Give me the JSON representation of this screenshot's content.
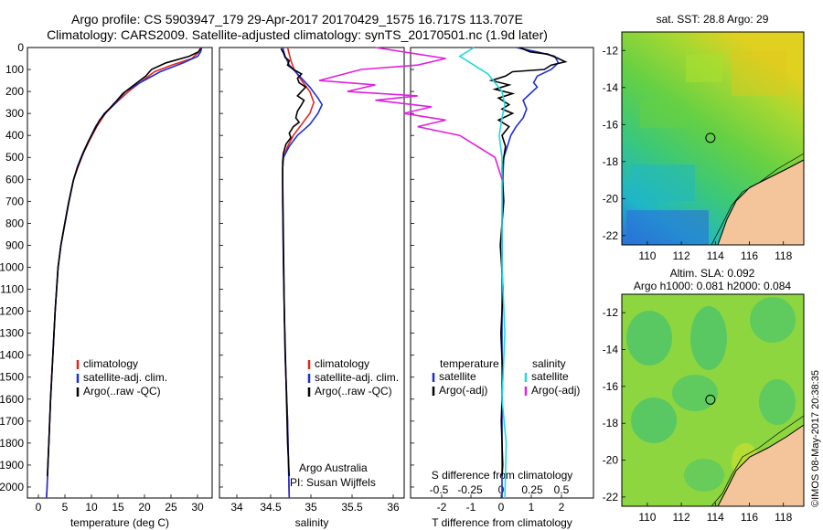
{
  "titles": {
    "line1": "Argo profile: CS 5903947_179 29-Apr-2017 20170429_1575 16.717S 113.707E",
    "line2": "Climatology: CARS2009. Satellite-adjusted climatology: synTS_20170501.nc (1.9d later)"
  },
  "colors": {
    "climatology": "#e8251d",
    "satellite": "#1c2fd6",
    "argo": "#000000",
    "sal_sat": "#22d8e0",
    "sal_argo": "#e020e0",
    "land": "#f4c49a"
  },
  "chart_data": [
    {
      "type": "line",
      "id": "temperature",
      "xlabel": "temperature (deg C)",
      "xlim": [
        -1,
        31
      ],
      "ylim": [
        2050,
        0
      ],
      "xticks": [
        "0",
        "5",
        "10",
        "15",
        "20",
        "25",
        "30"
      ],
      "yticks": [
        "0",
        "100",
        "200",
        "300",
        "400",
        "500",
        "600",
        "700",
        "800",
        "900",
        "1000",
        "1100",
        "1200",
        "1300",
        "1400",
        "1500",
        "1600",
        "1700",
        "1800",
        "1900",
        "2000"
      ],
      "legend": [
        "climatology",
        "satellite-adj. clim.",
        "Argo(..raw -QC)"
      ],
      "series": [
        {
          "name": "climatology",
          "color": "#e8251d",
          "points": [
            [
              29.0,
              0
            ],
            [
              28.7,
              20
            ],
            [
              27.5,
              50
            ],
            [
              24,
              80
            ],
            [
              21,
              110
            ],
            [
              18.5,
              160
            ],
            [
              16.5,
              200
            ],
            [
              14,
              260
            ],
            [
              12.5,
              300
            ],
            [
              11,
              360
            ],
            [
              9.8,
              420
            ],
            [
              8.7,
              480
            ],
            [
              7.8,
              540
            ],
            [
              7.0,
              600
            ],
            [
              6.2,
              700
            ],
            [
              5.5,
              800
            ],
            [
              4.8,
              900
            ],
            [
              4.3,
              1000
            ],
            [
              3.8,
              1200
            ],
            [
              3.4,
              1400
            ],
            [
              3.0,
              1600
            ],
            [
              2.7,
              1800
            ],
            [
              2.4,
              2000
            ],
            [
              2.3,
              2050
            ]
          ]
        },
        {
          "name": "satellite-adj. clim.",
          "color": "#1c2fd6",
          "points": [
            [
              29.2,
              0
            ],
            [
              29.0,
              20
            ],
            [
              28.5,
              40
            ],
            [
              26,
              70
            ],
            [
              22,
              110
            ],
            [
              18.5,
              160
            ],
            [
              16,
              200
            ],
            [
              14,
              260
            ],
            [
              12.3,
              300
            ],
            [
              10.8,
              360
            ],
            [
              9.7,
              420
            ],
            [
              8.6,
              480
            ],
            [
              7.7,
              540
            ],
            [
              7.0,
              600
            ],
            [
              6.2,
              700
            ],
            [
              5.5,
              800
            ],
            [
              4.8,
              900
            ],
            [
              4.3,
              1000
            ],
            [
              3.8,
              1200
            ],
            [
              3.4,
              1400
            ],
            [
              3.0,
              1600
            ],
            [
              2.7,
              1800
            ],
            [
              2.4,
              2000
            ],
            [
              2.3,
              2050
            ]
          ]
        },
        {
          "name": "Argo(..raw -QC)",
          "color": "#000000",
          "points": [
            [
              29.0,
              5
            ],
            [
              28.6,
              20
            ],
            [
              27,
              40
            ],
            [
              23,
              70
            ],
            [
              20.5,
              100
            ],
            [
              19.5,
              130
            ],
            [
              17,
              180
            ],
            [
              15.5,
              210
            ],
            [
              14.2,
              250
            ],
            [
              12.8,
              290
            ],
            [
              11.5,
              330
            ],
            [
              10.5,
              380
            ],
            [
              9.5,
              430
            ],
            [
              8.5,
              490
            ],
            [
              7.6,
              550
            ],
            [
              6.9,
              610
            ],
            [
              6.1,
              710
            ],
            [
              5.4,
              810
            ],
            [
              4.8,
              900
            ],
            [
              4.3,
              1000
            ],
            [
              3.8,
              1200
            ],
            [
              3.4,
              1400
            ],
            [
              3.0,
              1600
            ],
            [
              2.7,
              1800
            ],
            [
              2.45,
              1950
            ]
          ]
        }
      ]
    },
    {
      "type": "line",
      "id": "salinity",
      "xlabel": "salinity",
      "xlim": [
        33.85,
        36.1
      ],
      "ylim": [
        2050,
        0
      ],
      "xticks": [
        "34",
        "34.5",
        "35",
        "35.5",
        "36"
      ],
      "legend": [
        "climatology",
        "satellite-adj. clim.",
        "Argo(..raw -QC)"
      ],
      "annotations": [
        "Argo Australia",
        "PI: Susan Wijffels"
      ],
      "series": [
        {
          "name": "climatology",
          "color": "#e8251d",
          "points": [
            [
              34.68,
              0
            ],
            [
              34.7,
              30
            ],
            [
              34.72,
              60
            ],
            [
              34.76,
              100
            ],
            [
              34.85,
              150
            ],
            [
              34.95,
              200
            ],
            [
              35.0,
              250
            ],
            [
              34.95,
              300
            ],
            [
              34.85,
              350
            ],
            [
              34.75,
              400
            ],
            [
              34.68,
              450
            ],
            [
              34.63,
              500
            ],
            [
              34.62,
              550
            ],
            [
              34.62,
              700
            ],
            [
              34.63,
              1000
            ],
            [
              34.65,
              1400
            ],
            [
              34.68,
              1700
            ],
            [
              34.7,
              2050
            ]
          ]
        },
        {
          "name": "satellite-adj. clim.",
          "color": "#1c2fd6",
          "points": [
            [
              34.62,
              0
            ],
            [
              34.65,
              40
            ],
            [
              34.7,
              80
            ],
            [
              34.8,
              120
            ],
            [
              34.95,
              180
            ],
            [
              35.05,
              230
            ],
            [
              35.1,
              260
            ],
            [
              35.05,
              300
            ],
            [
              34.95,
              350
            ],
            [
              34.8,
              400
            ],
            [
              34.7,
              450
            ],
            [
              34.63,
              500
            ],
            [
              34.62,
              550
            ],
            [
              34.62,
              700
            ],
            [
              34.63,
              1000
            ],
            [
              34.65,
              1400
            ],
            [
              34.68,
              1700
            ],
            [
              34.7,
              2050
            ]
          ]
        },
        {
          "name": "Argo(..raw -QC)",
          "color": "#000000",
          "points": [
            [
              34.6,
              5
            ],
            [
              34.63,
              25
            ],
            [
              34.65,
              45
            ],
            [
              34.7,
              60
            ],
            [
              34.68,
              80
            ],
            [
              34.75,
              100
            ],
            [
              34.85,
              120
            ],
            [
              34.8,
              140
            ],
            [
              34.82,
              160
            ],
            [
              34.9,
              180
            ],
            [
              34.85,
              200
            ],
            [
              34.8,
              220
            ],
            [
              34.88,
              240
            ],
            [
              34.85,
              260
            ],
            [
              34.8,
              290
            ],
            [
              34.78,
              320
            ],
            [
              34.82,
              340
            ],
            [
              34.75,
              360
            ],
            [
              34.7,
              390
            ],
            [
              34.72,
              410
            ],
            [
              34.66,
              440
            ],
            [
              34.63,
              480
            ],
            [
              34.62,
              520
            ],
            [
              34.62,
              600
            ],
            [
              34.63,
              900
            ],
            [
              34.64,
              1200
            ],
            [
              34.66,
              1500
            ],
            [
              34.68,
              1800
            ],
            [
              34.7,
              1950
            ]
          ]
        }
      ]
    },
    {
      "type": "line",
      "id": "differences",
      "xlabel": "T difference from climatology",
      "xlabel2": "S difference from climatology",
      "xlim": [
        -2.6,
        2.6
      ],
      "ylim": [
        2050,
        0
      ],
      "xticks": [
        "-2",
        "-1",
        "0",
        "1",
        "2"
      ],
      "xticks2": [
        "-0.5",
        "-0.25",
        "0",
        "0.25",
        "0.5"
      ],
      "legend_left_title": "temperature",
      "legend_right_title": "salinity",
      "legend": [
        "satellite",
        "Argo(-adj)",
        "satellite",
        "Argo(-adj)"
      ],
      "series": [
        {
          "name": "satellite",
          "quantity": "temperature",
          "color": "#1c2fd6",
          "points": [
            [
              0.4,
              0
            ],
            [
              1.0,
              20
            ],
            [
              1.5,
              40
            ],
            [
              1.6,
              70
            ],
            [
              1.4,
              100
            ],
            [
              1.0,
              130
            ],
            [
              0.9,
              160
            ],
            [
              1.0,
              180
            ],
            [
              0.8,
              210
            ],
            [
              0.6,
              240
            ],
            [
              0.7,
              280
            ],
            [
              0.6,
              320
            ],
            [
              0.4,
              360
            ],
            [
              0.25,
              400
            ],
            [
              0.15,
              450
            ],
            [
              0.05,
              500
            ],
            [
              0.02,
              600
            ],
            [
              0.0,
              800
            ],
            [
              0.0,
              1200
            ],
            [
              0.0,
              2050
            ]
          ]
        },
        {
          "name": "Argo(-adj)",
          "quantity": "temperature",
          "color": "#000000",
          "points": [
            [
              0.5,
              0
            ],
            [
              0.8,
              20
            ],
            [
              1.3,
              30
            ],
            [
              1.6,
              50
            ],
            [
              1.8,
              65
            ],
            [
              1.4,
              80
            ],
            [
              1.2,
              100
            ],
            [
              0.3,
              110
            ],
            [
              0.1,
              130
            ],
            [
              -0.3,
              150
            ],
            [
              0.2,
              170
            ],
            [
              -0.2,
              190
            ],
            [
              0.3,
              210
            ],
            [
              -0.1,
              230
            ],
            [
              0.2,
              260
            ],
            [
              0.0,
              280
            ],
            [
              0.3,
              300
            ],
            [
              -0.1,
              330
            ],
            [
              0.2,
              360
            ],
            [
              0.0,
              400
            ],
            [
              0.1,
              450
            ],
            [
              0.0,
              550
            ],
            [
              0.05,
              700
            ],
            [
              -0.05,
              900
            ],
            [
              0.03,
              1100
            ],
            [
              -0.03,
              1300
            ],
            [
              0.02,
              1500
            ],
            [
              -0.02,
              1700
            ],
            [
              0.02,
              1900
            ],
            [
              0.0,
              1950
            ]
          ]
        },
        {
          "name": "satellite",
          "quantity": "salinity",
          "color": "#22d8e0",
          "points": [
            [
              -0.2,
              0
            ],
            [
              -0.3,
              40
            ],
            [
              -0.2,
              80
            ],
            [
              -0.1,
              120
            ],
            [
              -0.05,
              160
            ],
            [
              0.0,
              200
            ],
            [
              0.02,
              260
            ],
            [
              0.0,
              320
            ],
            [
              -0.02,
              400
            ],
            [
              0.0,
              500
            ],
            [
              0.0,
              700
            ],
            [
              0.0,
              1000
            ],
            [
              0.02,
              1300
            ],
            [
              0.0,
              1600
            ],
            [
              0.03,
              1800
            ],
            [
              0.02,
              2050
            ]
          ]
        },
        {
          "name": "Argo(-adj)",
          "quantity": "salinity",
          "color": "#e020e0",
          "points": [
            [
              -0.9,
              0
            ],
            [
              -0.6,
              30
            ],
            [
              -0.4,
              50
            ],
            [
              -0.6,
              80
            ],
            [
              -1.0,
              100
            ],
            [
              -1.3,
              150
            ],
            [
              -0.9,
              170
            ],
            [
              -1.1,
              200
            ],
            [
              -0.6,
              220
            ],
            [
              -0.9,
              240
            ],
            [
              -0.5,
              270
            ],
            [
              -0.7,
              300
            ],
            [
              -0.4,
              330
            ],
            [
              -0.6,
              360
            ],
            [
              -0.3,
              400
            ],
            [
              -0.2,
              440
            ],
            [
              -0.05,
              500
            ],
            [
              0.0,
              600
            ]
          ]
        }
      ]
    },
    {
      "type": "heatmap",
      "id": "sst_map",
      "title": "sat. SST: 28.8 Argo: 29",
      "xticks": [
        "110",
        "112",
        "114",
        "116",
        "118"
      ],
      "yticks": [
        "-12",
        "-14",
        "-16",
        "-18",
        "-20",
        "-22"
      ],
      "marker": {
        "lon": 113.707,
        "lat": -16.717
      }
    },
    {
      "type": "heatmap",
      "id": "sla_map",
      "title": "Altim. SLA: 0.092",
      "subtitle": "Argo h1000: 0.081 h2000: 0.084",
      "xticks": [
        "110",
        "112",
        "114",
        "116",
        "118"
      ],
      "yticks": [
        "-12",
        "-14",
        "-16",
        "-18",
        "-20",
        "-22"
      ],
      "marker": {
        "lon": 113.707,
        "lat": -16.717
      }
    }
  ],
  "footer": "©IMOS 08-May-2017 20:38:35"
}
